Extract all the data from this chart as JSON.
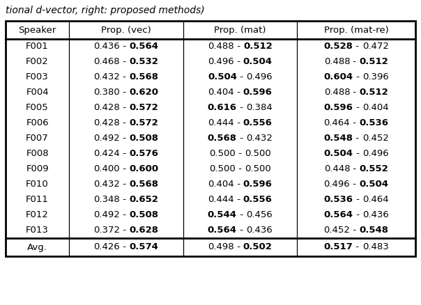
{
  "title": "tional d-vector, right: proposed methods)",
  "headers": [
    "Speaker",
    "Prop. (vec)",
    "Prop. (mat)",
    "Prop. (mat-re)"
  ],
  "rows": [
    [
      "F001",
      "0.436",
      "0.564",
      "0.488",
      "0.512",
      "0.528",
      "0.472"
    ],
    [
      "F002",
      "0.468",
      "0.532",
      "0.496",
      "0.504",
      "0.488",
      "0.512"
    ],
    [
      "F003",
      "0.432",
      "0.568",
      "0.504",
      "0.496",
      "0.604",
      "0.396"
    ],
    [
      "F004",
      "0.380",
      "0.620",
      "0.404",
      "0.596",
      "0.488",
      "0.512"
    ],
    [
      "F005",
      "0.428",
      "0.572",
      "0.616",
      "0.384",
      "0.596",
      "0.404"
    ],
    [
      "F006",
      "0.428",
      "0.572",
      "0.444",
      "0.556",
      "0.464",
      "0.536"
    ],
    [
      "F007",
      "0.492",
      "0.508",
      "0.568",
      "0.432",
      "0.548",
      "0.452"
    ],
    [
      "F008",
      "0.424",
      "0.576",
      "0.500",
      "0.500",
      "0.504",
      "0.496"
    ],
    [
      "F009",
      "0.400",
      "0.600",
      "0.500",
      "0.500",
      "0.448",
      "0.552"
    ],
    [
      "F010",
      "0.432",
      "0.568",
      "0.404",
      "0.596",
      "0.496",
      "0.504"
    ],
    [
      "F011",
      "0.348",
      "0.652",
      "0.444",
      "0.556",
      "0.536",
      "0.464"
    ],
    [
      "F012",
      "0.492",
      "0.508",
      "0.544",
      "0.456",
      "0.564",
      "0.436"
    ],
    [
      "F013",
      "0.372",
      "0.628",
      "0.564",
      "0.436",
      "0.452",
      "0.548"
    ]
  ],
  "avg_row": [
    "Avg.",
    "0.426",
    "0.574",
    "0.498",
    "0.502",
    "0.517",
    "0.483"
  ],
  "background_color": "#ffffff",
  "border_color": "#000000",
  "text_color": "#000000",
  "font_size": 9.5,
  "header_font_size": 9.5,
  "font_family": "DejaVu Sans",
  "fig_width": 6.04,
  "fig_height": 4.38,
  "dpi": 100
}
